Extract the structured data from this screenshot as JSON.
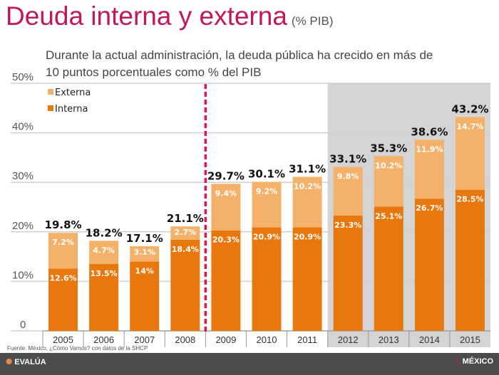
{
  "title": "Deuda interna y externa",
  "title_unit": "(% PIB)",
  "subtitle": "Durante la actual administración, la deuda pública ha crecido en más de 10 puntos porcentuales como % del PIB",
  "source": "Fuente: México, ¿Cómo Vamos? con datos de la SHCP",
  "logos": {
    "left": "MÉXICO EVALÚA",
    "right": "MÉXICO ¿cómo vamos?"
  },
  "colors": {
    "interna": "#e8780e",
    "externa": "#f3b16a",
    "title": "#c2185b",
    "divider": "#e0174f",
    "highlight_bg": "#d4d4d4"
  },
  "chart_data": {
    "type": "bar",
    "stacked": true,
    "categories": [
      "2005",
      "2006",
      "2007",
      "2008",
      "2009",
      "2010",
      "2011",
      "2012",
      "2013",
      "2014",
      "2015"
    ],
    "series": [
      {
        "name": "Interna",
        "values": [
          12.6,
          13.5,
          14,
          18.4,
          20.3,
          20.9,
          20.9,
          23.3,
          25.1,
          26.7,
          28.5
        ],
        "labels": [
          "12.6%",
          "13.5%",
          "14%",
          "18.4%",
          "20.3%",
          "20.9%",
          "20.9%",
          "23.3%",
          "25.1%",
          "26.7%",
          "28.5%"
        ]
      },
      {
        "name": "Externa",
        "values": [
          7.2,
          4.7,
          3.1,
          2.7,
          9.4,
          9.2,
          10.2,
          9.8,
          10.2,
          11.9,
          14.7
        ],
        "labels": [
          "7.2%",
          "4.7%",
          "3.1%",
          "2.7%",
          "9.4%",
          "9.2%",
          "10.2%",
          "9.8%",
          "10.2%",
          "11.9%",
          "14.7%"
        ]
      }
    ],
    "totals": [
      "19.8%",
      "18.2%",
      "17.1%",
      "21.1%",
      "29.7%",
      "30.1%",
      "31.1%",
      "33.1%",
      "35.3%",
      "38.6%",
      "43.2%"
    ],
    "yticks": [
      "0",
      "10%",
      "20%",
      "30%",
      "40%",
      "50%"
    ],
    "ylim": [
      0,
      50
    ],
    "grid": true,
    "legend": "top-left",
    "divider_after": "2008",
    "highlighted_categories": [
      "2012",
      "2013",
      "2014",
      "2015"
    ]
  }
}
